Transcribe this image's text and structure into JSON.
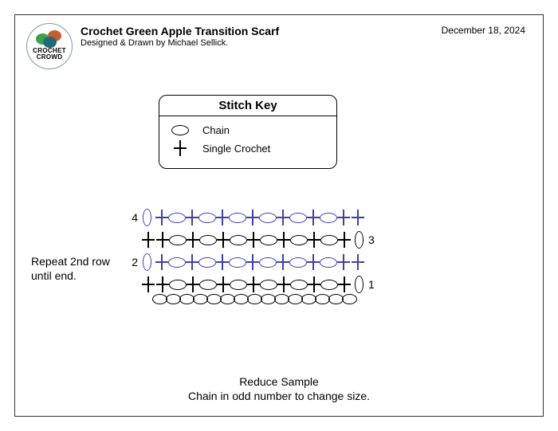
{
  "header": {
    "title": "Crochet Green Apple Transition Scarf",
    "subtitle": "Designed & Drawn by Michael Sellick.",
    "date": "December 18, 2024"
  },
  "logo": {
    "brand_top": "CROCHET",
    "brand_bot": "CROWD",
    "ball_colors": [
      "#3ba24a",
      "#c95b2a",
      "#1c6b7a"
    ],
    "ring_color": "#6f9ab0"
  },
  "stitch_key": {
    "title": "Stitch Key",
    "items": [
      {
        "symbol": "chain",
        "label": "Chain"
      },
      {
        "symbol": "plus",
        "label": "Single Crochet"
      }
    ]
  },
  "chart": {
    "rows": [
      {
        "num": "4",
        "side": "left",
        "color": "#3f3fb5",
        "seq": [
          "tc",
          "pl",
          "ov",
          "pl",
          "ov",
          "pl",
          "ov",
          "pl",
          "ov",
          "pl",
          "ov",
          "pl",
          "ov",
          "pl",
          "pl"
        ]
      },
      {
        "num": "3",
        "side": "right",
        "color": "#000000",
        "seq": [
          "pl",
          "pl",
          "ov",
          "pl",
          "ov",
          "pl",
          "ov",
          "pl",
          "ov",
          "pl",
          "ov",
          "pl",
          "ov",
          "pl",
          "ec"
        ]
      },
      {
        "num": "2",
        "side": "left",
        "color": "#3f3fb5",
        "seq": [
          "tc",
          "pl",
          "ov",
          "pl",
          "ov",
          "pl",
          "ov",
          "pl",
          "ov",
          "pl",
          "ov",
          "pl",
          "ov",
          "pl",
          "pl"
        ]
      },
      {
        "num": "1",
        "side": "right",
        "color": "#000000",
        "seq": [
          "pl",
          "pl",
          "ov",
          "pl",
          "ov",
          "pl",
          "ov",
          "pl",
          "ov",
          "pl",
          "ov",
          "pl",
          "ov",
          "pl",
          "ec"
        ]
      }
    ],
    "foundation_count": 15,
    "foundation_color": "#000000"
  },
  "labels": {
    "repeat": "Repeat 2nd row until end.",
    "bottom1": "Reduce Sample",
    "bottom2": "Chain in odd number to change size."
  }
}
